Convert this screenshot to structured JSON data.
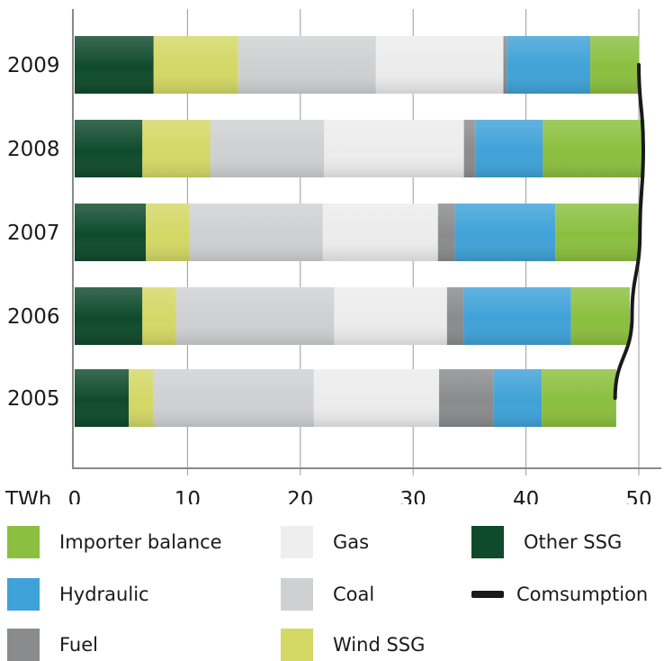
{
  "chart_data": {
    "type": "bar",
    "orientation": "horizontal",
    "stacked": true,
    "unit_label": "TWh",
    "xlim": [
      0,
      50
    ],
    "x_ticks": [
      "0",
      "10",
      "20",
      "30",
      "40",
      "50"
    ],
    "grid": true,
    "categories": [
      "2009",
      "2008",
      "2007",
      "2006",
      "2005"
    ],
    "series": [
      {
        "name": "Other SSG",
        "color": "#0f4a2c",
        "values": [
          7.0,
          6.0,
          6.3,
          6.0,
          4.8
        ]
      },
      {
        "name": "Wind SSG",
        "color": "#d3d865",
        "values": [
          7.5,
          6.0,
          3.9,
          3.0,
          2.2
        ]
      },
      {
        "name": "Coal",
        "color": "#cfd0d1",
        "values": [
          12.2,
          10.1,
          11.8,
          14.0,
          14.2
        ]
      },
      {
        "name": "Gas",
        "color": "#ececec",
        "values": [
          11.3,
          12.4,
          10.2,
          10.0,
          11.1
        ]
      },
      {
        "name": "Fuel",
        "color": "#8a8b8d",
        "values": [
          0.3,
          1.0,
          1.5,
          1.5,
          4.8
        ]
      },
      {
        "name": "Hydraulic",
        "color": "#3fa2d8",
        "values": [
          7.4,
          6.0,
          8.9,
          9.5,
          4.3
        ]
      },
      {
        "name": "Importer balance",
        "color": "#8bbf3f",
        "values": [
          4.3,
          9.0,
          7.4,
          5.2,
          6.6
        ]
      }
    ],
    "line_series": {
      "name": "Comsumption",
      "color": "#1a1a1a",
      "values": [
        50.0,
        50.4,
        50.1,
        49.4,
        47.9
      ]
    }
  },
  "legend": [
    {
      "label": "Importer balance",
      "color": "#8bbf3f",
      "kind": "box"
    },
    {
      "label": "Gas",
      "color": "#ececec",
      "kind": "box"
    },
    {
      "label": "Other SSG",
      "color": "#0f4a2c",
      "kind": "box"
    },
    {
      "label": "Hydraulic",
      "color": "#3fa2d8",
      "kind": "box"
    },
    {
      "label": "Coal",
      "color": "#cfd0d1",
      "kind": "box"
    },
    {
      "label": "Comsumption",
      "color": "#1a1a1a",
      "kind": "line"
    },
    {
      "label": "Fuel",
      "color": "#8a8b8d",
      "kind": "box"
    },
    {
      "label": "Wind SSG",
      "color": "#d3d865",
      "kind": "box"
    }
  ]
}
